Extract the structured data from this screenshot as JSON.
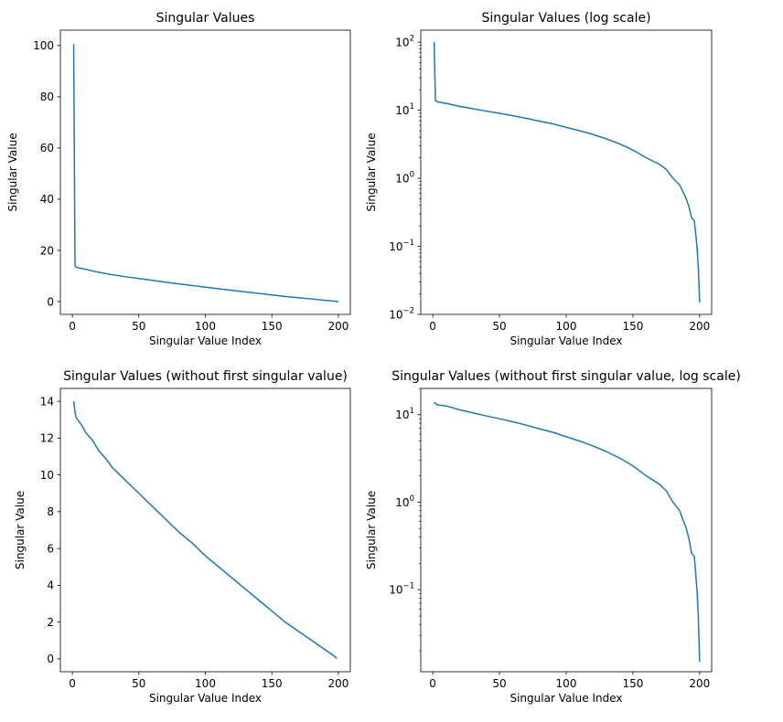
{
  "chart_data": [
    {
      "type": "line",
      "title": "Singular Values",
      "xlabel": "Singular Value Index",
      "ylabel": "Singular Value",
      "yscale": "linear",
      "xlim": [
        -9,
        209
      ],
      "ylim": [
        -5,
        106
      ],
      "xticks": [
        0,
        50,
        100,
        150,
        200
      ],
      "yticks": [
        0,
        20,
        40,
        60,
        80,
        100
      ],
      "line_color": "#1f77b4",
      "series": [
        {
          "x": [
            1,
            2,
            3,
            5,
            10,
            20,
            30,
            40,
            50,
            60,
            70,
            80,
            90,
            100,
            110,
            120,
            130,
            140,
            150,
            160,
            170,
            180,
            190,
            195,
            200
          ],
          "y": [
            100.5,
            14.0,
            13.4,
            13.1,
            12.6,
            11.4,
            10.5,
            9.7,
            9.0,
            8.3,
            7.6,
            6.9,
            6.3,
            5.6,
            5.0,
            4.4,
            3.8,
            3.2,
            2.6,
            2.0,
            1.5,
            1.0,
            0.5,
            0.25,
            0.015
          ]
        }
      ]
    },
    {
      "type": "line",
      "title": "Singular Values (log scale)",
      "xlabel": "Singular Value Index",
      "ylabel": "Singular Value",
      "yscale": "log",
      "xlim": [
        -9,
        209
      ],
      "ylim": [
        0.01,
        150
      ],
      "xticks": [
        0,
        50,
        100,
        150,
        200
      ],
      "yticks": [
        0.01,
        0.1,
        1,
        10,
        100
      ],
      "ytick_exponents": [
        "−2",
        "−1",
        "0",
        "1",
        "2"
      ],
      "line_color": "#1f77b4",
      "series": [
        {
          "x": [
            1,
            2,
            3,
            5,
            10,
            20,
            30,
            40,
            50,
            60,
            70,
            80,
            90,
            100,
            110,
            120,
            130,
            140,
            150,
            160,
            170,
            175,
            180,
            185,
            188,
            190,
            192,
            194,
            196,
            198,
            199,
            200
          ],
          "y": [
            100.5,
            14.0,
            13.4,
            13.1,
            12.6,
            11.4,
            10.5,
            9.7,
            9.0,
            8.3,
            7.6,
            6.9,
            6.3,
            5.6,
            5.0,
            4.4,
            3.8,
            3.2,
            2.6,
            2.0,
            1.6,
            1.35,
            1.0,
            0.8,
            0.6,
            0.5,
            0.38,
            0.26,
            0.24,
            0.1,
            0.05,
            0.015
          ]
        }
      ]
    },
    {
      "type": "line",
      "title": "Singular Values (without first singular value)",
      "xlabel": "Singular Value Index",
      "ylabel": "Singular Value",
      "yscale": "linear",
      "xlim": [
        -9,
        209
      ],
      "ylim": [
        -0.7,
        14.7
      ],
      "xticks": [
        0,
        50,
        100,
        150,
        200
      ],
      "yticks": [
        0,
        2,
        4,
        6,
        8,
        10,
        12,
        14
      ],
      "line_color": "#1f77b4",
      "series": [
        {
          "x": [
            1,
            2,
            3,
            5,
            8,
            10,
            15,
            20,
            25,
            30,
            40,
            50,
            60,
            70,
            80,
            90,
            100,
            110,
            120,
            130,
            140,
            150,
            160,
            170,
            180,
            190,
            195,
            199
          ],
          "y": [
            14.0,
            13.4,
            13.1,
            12.9,
            12.6,
            12.3,
            11.9,
            11.3,
            10.9,
            10.4,
            9.7,
            9.0,
            8.3,
            7.6,
            6.9,
            6.3,
            5.6,
            5.0,
            4.4,
            3.8,
            3.2,
            2.6,
            2.0,
            1.5,
            1.0,
            0.5,
            0.25,
            0.02
          ]
        }
      ]
    },
    {
      "type": "line",
      "title": "Singular Values (without first singular value, log scale)",
      "xlabel": "Singular Value Index",
      "ylabel": "Singular Value",
      "yscale": "log",
      "xlim": [
        -9,
        209
      ],
      "ylim": [
        0.0115,
        20
      ],
      "xticks": [
        0,
        50,
        100,
        150,
        200
      ],
      "yticks": [
        0.1,
        1,
        10
      ],
      "ytick_exponents": [
        "−1",
        "0",
        "1"
      ],
      "line_color": "#1f77b4",
      "series": [
        {
          "x": [
            1,
            2,
            3,
            5,
            10,
            20,
            30,
            40,
            50,
            60,
            70,
            80,
            90,
            100,
            110,
            120,
            130,
            140,
            150,
            160,
            170,
            175,
            180,
            185,
            188,
            190,
            192,
            194,
            196,
            198,
            199,
            200
          ],
          "y": [
            14.0,
            13.4,
            13.1,
            12.9,
            12.6,
            11.4,
            10.5,
            9.7,
            9.0,
            8.3,
            7.6,
            6.9,
            6.3,
            5.6,
            5.0,
            4.4,
            3.8,
            3.2,
            2.6,
            2.0,
            1.6,
            1.35,
            1.0,
            0.8,
            0.6,
            0.5,
            0.38,
            0.26,
            0.24,
            0.1,
            0.05,
            0.015
          ]
        }
      ]
    }
  ]
}
